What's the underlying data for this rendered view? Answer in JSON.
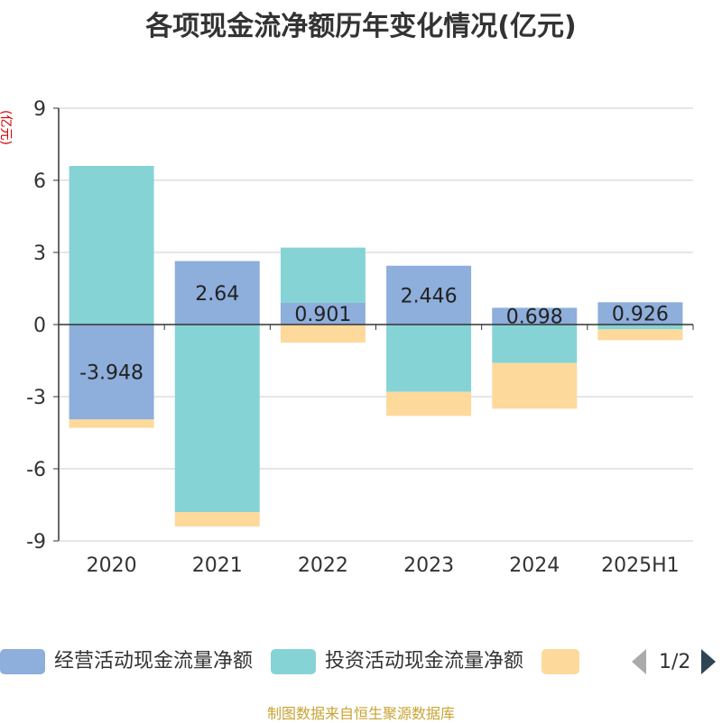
{
  "chart_data": {
    "type": "bar",
    "stacked": true,
    "title": "各项现金流净额历年变化情况(亿元)",
    "ylabel": "(亿元)",
    "xlabel": "",
    "categories": [
      "2020",
      "2021",
      "2022",
      "2023",
      "2024",
      "2025H1"
    ],
    "ylim": [
      -9,
      9
    ],
    "yticks": [
      9,
      6,
      3,
      0,
      -3,
      -6,
      -9
    ],
    "grid": true,
    "series": [
      {
        "name": "经营活动现金流量净额",
        "color": "#8eaedb",
        "values": [
          -3.948,
          2.64,
          0.901,
          2.446,
          0.698,
          0.926
        ],
        "labels": [
          "-3.948",
          "2.64",
          "0.901",
          "2.446",
          "0.698",
          "0.926"
        ]
      },
      {
        "name": "投资活动现金流量净额",
        "color": "#86d3d6",
        "values": [
          6.6,
          -7.8,
          2.3,
          -2.8,
          -1.6,
          -0.2
        ]
      },
      {
        "name": "",
        "color": "#fdd99c",
        "values": [
          -0.35,
          -0.6,
          -0.75,
          -1.0,
          -1.9,
          -0.45
        ]
      }
    ]
  },
  "legend": {
    "page_text": "1/2"
  },
  "source_text": "制图数据来自恒生聚源数据库"
}
